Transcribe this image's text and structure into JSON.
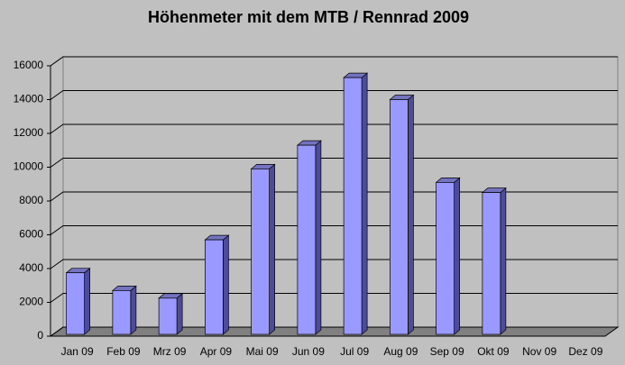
{
  "chart_data": {
    "type": "bar3d",
    "title": "Höhenmeter mit dem MTB / Rennrad 2009",
    "categories": [
      "Jan 09",
      "Feb 09",
      "Mrz 09",
      "Apr 09",
      "Mai 09",
      "Jun 09",
      "Jul 09",
      "Aug 09",
      "Sep 09",
      "Okt 09",
      "Nov 09",
      "Dez 09"
    ],
    "values": [
      3750,
      2700,
      2250,
      5700,
      9900,
      11300,
      15300,
      14000,
      9100,
      8500,
      null,
      null
    ],
    "color": "#9999ff",
    "ylim": [
      0,
      16000
    ],
    "yticks": [
      0,
      2000,
      4000,
      6000,
      8000,
      10000,
      12000,
      14000,
      16000
    ],
    "grid": true
  }
}
